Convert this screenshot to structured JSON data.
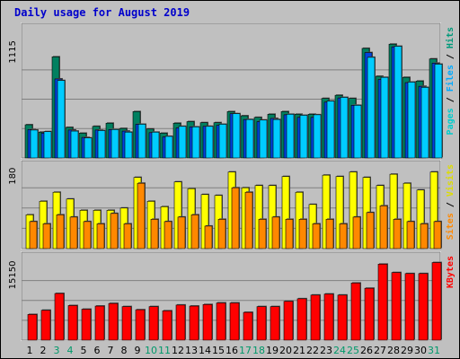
{
  "chart_data": {
    "type": "bar",
    "title": "Daily usage for August 2019",
    "days": [
      "1",
      "2",
      "3",
      "4",
      "5",
      "6",
      "7",
      "8",
      "9",
      "10",
      "11",
      "12",
      "13",
      "14",
      "15",
      "16",
      "17",
      "18",
      "19",
      "20",
      "21",
      "22",
      "23",
      "24",
      "25",
      "26",
      "27",
      "28",
      "29",
      "30",
      "31"
    ],
    "weekend_days": [
      "3",
      "4",
      "10",
      "11",
      "17",
      "18",
      "24",
      "25",
      "31"
    ],
    "panels": [
      {
        "max_label": "1115",
        "ymax": 1115,
        "side_labels": [
          {
            "text": "Pages",
            "color": "#00cccc"
          },
          {
            "text": " / ",
            "color": "#000000"
          },
          {
            "text": "Files",
            "color": "#00aaff"
          },
          {
            "text": " / ",
            "color": "#000000"
          },
          {
            "text": "Hits",
            "color": "#00997a"
          }
        ],
        "series": [
          {
            "key": "hits",
            "color": "#008060",
            "values": [
              315,
              245,
              960,
              290,
              235,
              300,
              330,
              280,
              440,
              275,
              235,
              330,
              345,
              335,
              335,
              440,
              400,
              385,
              415,
              440,
              415,
              415,
              565,
              595,
              565,
              1040,
              775,
              1080,
              765,
              730,
              940
            ]
          },
          {
            "key": "files",
            "color": "#0044dd",
            "values": [
              270,
              235,
              750,
              265,
              195,
              265,
              270,
              255,
              320,
              240,
              200,
              285,
              295,
              300,
              310,
              420,
              365,
              345,
              375,
              410,
              385,
              385,
              530,
              570,
              500,
              1000,
              745,
              1055,
              715,
              680,
              900
            ]
          },
          {
            "key": "pages",
            "color": "#00ccff",
            "values": [
              265,
              250,
              735,
              255,
              190,
              260,
              270,
              245,
              320,
              245,
              205,
              300,
              295,
              300,
              320,
              420,
              365,
              360,
              365,
              415,
              405,
              410,
              540,
              575,
              500,
              955,
              765,
              1060,
              720,
              670,
              890
            ]
          }
        ]
      },
      {
        "max_label": "180",
        "ymax": 180,
        "side_labels": [
          {
            "text": "Sites",
            "color": "#ff8800"
          },
          {
            "text": " / ",
            "color": "#000000"
          },
          {
            "text": "Visits",
            "color": "#dddd00"
          }
        ],
        "series": [
          {
            "key": "visits",
            "color": "#ffff00",
            "values": [
              75,
              105,
              125,
              110,
              85,
              85,
              85,
              90,
              158,
              105,
              93,
              148,
              133,
              120,
              118,
              170,
              135,
              140,
              140,
              160,
              125,
              98,
              163,
              160,
              170,
              158,
              140,
              165,
              145,
              130,
              170
            ]
          },
          {
            "key": "sites",
            "color": "#ff8800",
            "values": [
              60,
              55,
              75,
              70,
              60,
              55,
              78,
              55,
              145,
              65,
              60,
              70,
              75,
              50,
              65,
              135,
              125,
              65,
              70,
              65,
              65,
              55,
              65,
              55,
              70,
              80,
              95,
              65,
              60,
              55,
              60
            ]
          }
        ]
      },
      {
        "max_label": "15150",
        "ymax": 15150,
        "side_labels": [
          {
            "text": "KBytes",
            "color": "#ff0000"
          }
        ],
        "series": [
          {
            "key": "kbytes",
            "color": "#ff0000",
            "values": [
              4900,
              5700,
              8900,
              6600,
              5900,
              6500,
              7000,
              6400,
              5800,
              6400,
              5600,
              6700,
              6500,
              6800,
              7100,
              7100,
              5300,
              6400,
              6400,
              7400,
              7900,
              8600,
              8800,
              8600,
              10900,
              9900,
              14500,
              12900,
              12700,
              12700,
              14800
            ]
          }
        ]
      }
    ]
  }
}
